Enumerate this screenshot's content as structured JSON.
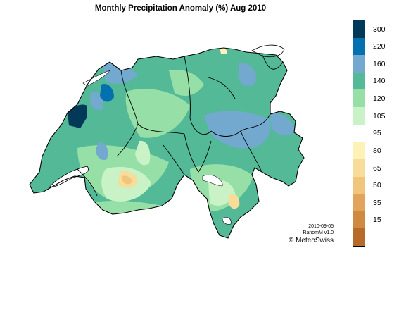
{
  "title": "Monthly Precipitation Anomaly (%) Aug 2010",
  "date": "2010-09-05",
  "version": "RanomM v1.0",
  "credit": "© MeteoSwiss",
  "legend": {
    "colors": [
      "#023858",
      "#0570b0",
      "#74a9cf",
      "#53b996",
      "#96e0a8",
      "#c9f2c6",
      "#ffffff",
      "#fef2b8",
      "#f7dc9a",
      "#f0c67c",
      "#e2a35c",
      "#d08940",
      "#b86a2a"
    ],
    "labels": [
      "300",
      "220",
      "160",
      "140",
      "120",
      "105",
      "95",
      "80",
      "65",
      "50",
      "35",
      "15"
    ]
  }
}
